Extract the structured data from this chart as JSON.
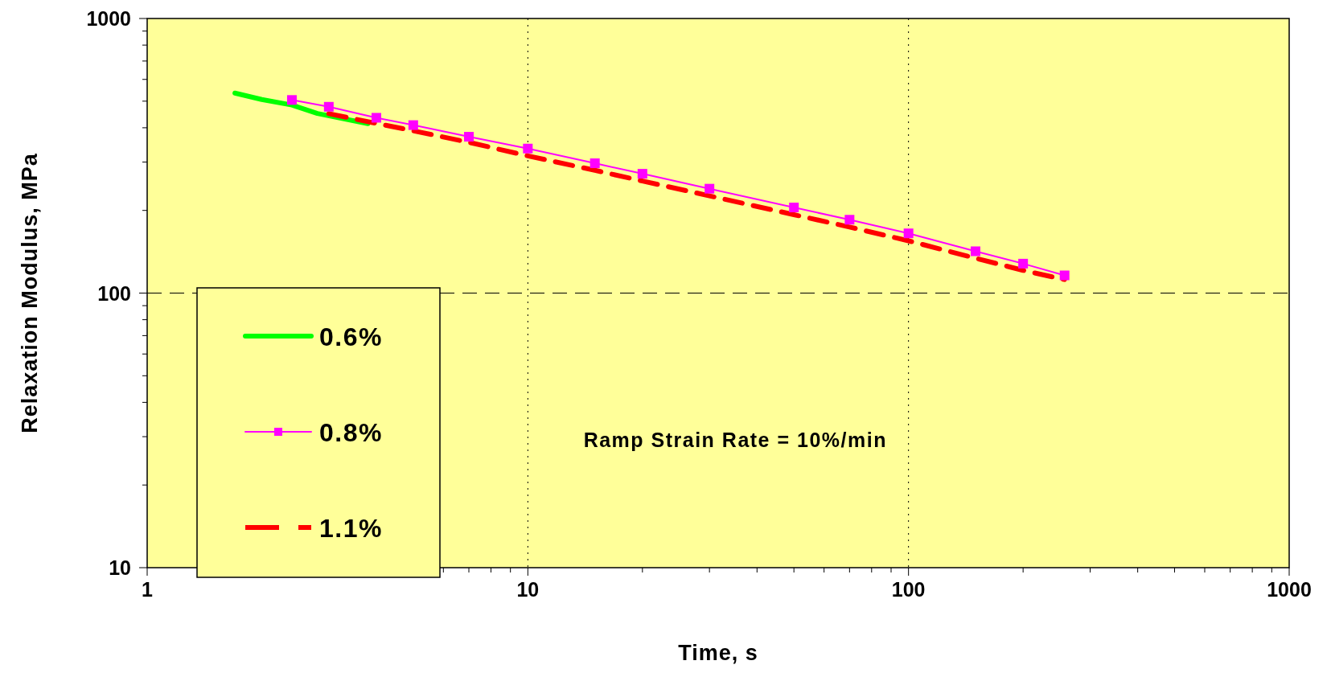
{
  "chart_data": {
    "type": "line",
    "xlabel": "Time, s",
    "ylabel": "Relaxation Modulus, MPa",
    "log": "xy",
    "xlim": [
      1,
      1000
    ],
    "ylim": [
      10,
      1000
    ],
    "xticks": [
      1,
      {
        "value": 2,
        "label": null
      },
      {
        "value": 3,
        "label": null
      },
      {
        "value": 4,
        "label": null
      },
      {
        "value": 5,
        "label": null
      },
      {
        "value": 6,
        "label": null
      },
      {
        "value": 7,
        "label": null
      },
      {
        "value": 8,
        "label": null
      },
      {
        "value": 9,
        "label": null
      },
      10,
      {
        "value": 20,
        "label": null
      },
      {
        "value": 30,
        "label": null
      },
      {
        "value": 40,
        "label": null
      },
      {
        "value": 50,
        "label": null
      },
      {
        "value": 60,
        "label": null
      },
      {
        "value": 70,
        "label": null
      },
      {
        "value": 80,
        "label": null
      },
      {
        "value": 90,
        "label": null
      },
      100,
      {
        "value": 200,
        "label": null
      },
      {
        "value": 300,
        "label": null
      },
      {
        "value": 400,
        "label": null
      },
      {
        "value": 500,
        "label": null
      },
      {
        "value": 600,
        "label": null
      },
      {
        "value": 700,
        "label": null
      },
      {
        "value": 800,
        "label": null
      },
      {
        "value": 900,
        "label": null
      },
      1000
    ],
    "yticks": [
      10,
      {
        "value": 20,
        "label": null
      },
      {
        "value": 30,
        "label": null
      },
      {
        "value": 40,
        "label": null
      },
      {
        "value": 50,
        "label": null
      },
      {
        "value": 60,
        "label": null
      },
      {
        "value": 70,
        "label": null
      },
      {
        "value": 80,
        "label": null
      },
      {
        "value": 90,
        "label": null
      },
      100,
      {
        "value": 200,
        "label": null
      },
      {
        "value": 300,
        "label": null
      },
      {
        "value": 400,
        "label": null
      },
      {
        "value": 500,
        "label": null
      },
      {
        "value": 600,
        "label": null
      },
      {
        "value": 700,
        "label": null
      },
      {
        "value": 800,
        "label": null
      },
      {
        "value": 900,
        "label": null
      },
      1000
    ],
    "grid": true,
    "legend": "bottom left",
    "annotations": [
      "Ramp Strain Rate = 10%/min"
    ],
    "series": [
      {
        "name": "0.6%",
        "color": "#00ff00",
        "line_style": "solid",
        "marker": "none",
        "x": [
          1.7,
          2,
          2.4,
          2.8,
          3.8
        ],
        "values": [
          535,
          507,
          484,
          451,
          414
        ]
      },
      {
        "name": "1.1%",
        "color": "#ff0000",
        "line_style": "dashed",
        "marker": "none",
        "x": [
          3,
          4,
          5,
          7,
          10,
          15,
          20,
          30,
          50,
          70,
          100,
          150,
          200,
          257
        ],
        "values": [
          450,
          415,
          390,
          354,
          316,
          280,
          256,
          226,
          193,
          174,
          155,
          134,
          121,
          112
        ]
      },
      {
        "name": "0.8%",
        "color": "#ff00ff",
        "line_style": "solid",
        "marker": "square",
        "x": [
          2.4,
          3,
          4,
          5,
          7,
          10,
          15,
          20,
          30,
          50,
          70,
          100,
          150,
          200,
          257
        ],
        "values": [
          505,
          477,
          435,
          409,
          371,
          336,
          297,
          272,
          240,
          205,
          185,
          165,
          142,
          128,
          116
        ]
      }
    ]
  }
}
